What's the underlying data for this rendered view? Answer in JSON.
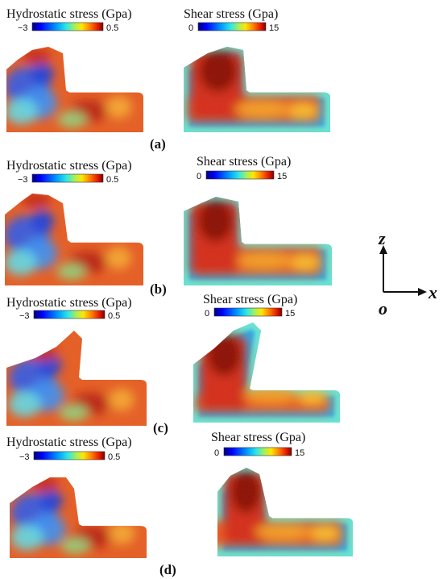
{
  "panels": [
    {
      "label": "(a)",
      "hydro": {
        "title": "Hydrostatic stress (Gpa)",
        "min": "−3",
        "max": "0.5"
      },
      "shear": {
        "title": "Shear stress (Gpa)",
        "min": "0",
        "max": "15"
      }
    },
    {
      "label": "(b)",
      "hydro": {
        "title": "Hydrostatic stress (Gpa)",
        "min": "−3",
        "max": "0.5"
      },
      "shear": {
        "title": "Shear stress (Gpa)",
        "min": "0",
        "max": "15"
      }
    },
    {
      "label": "(c)",
      "hydro": {
        "title": "Hydrostatic stress (Gpa)",
        "min": "−3",
        "max": "0.5"
      },
      "shear": {
        "title": "Shear stress (Gpa)",
        "min": "0",
        "max": "15"
      }
    },
    {
      "label": "(d)",
      "hydro": {
        "title": "Hydrostatic stress (Gpa)",
        "min": "−3",
        "max": "0.5"
      },
      "shear": {
        "title": "Shear stress (Gpa)",
        "min": "0",
        "max": "15"
      }
    }
  ],
  "axes": {
    "z": "z",
    "x": "x",
    "origin": "o"
  },
  "colors": {
    "jet": [
      "#00007f",
      "#0000ff",
      "#00a0ff",
      "#2ee6e6",
      "#a6f05a",
      "#ffe600",
      "#ff7a00",
      "#e81d00",
      "#7f0000"
    ],
    "hydro_base": "#e8521e",
    "hydro_low": "#2b5fe0",
    "shear_edge": "#37b6e6",
    "shear_core": "#d8301c"
  }
}
